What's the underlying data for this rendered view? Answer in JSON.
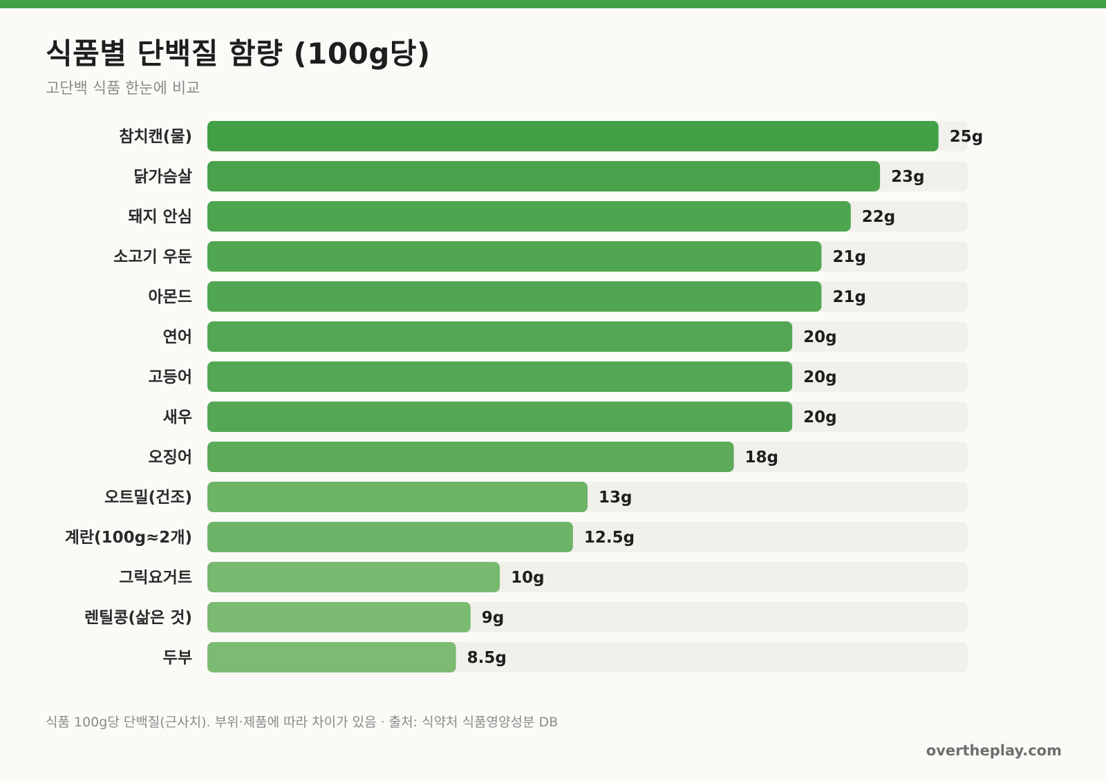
{
  "header": {
    "title": "식품별 단백질 함량 (100g당)",
    "subtitle": "고단백 식품 한눈에 비교"
  },
  "footer": {
    "note": "식품 100g당 단백질(근사치). 부위·제품에 따라 차이가 있음 · 출처: 식약처 식품영양성분 DB",
    "site": "overtheplay.com"
  },
  "colors": {
    "accent": "#43a047",
    "bar_strong": "#43a047",
    "bar_light": "#7cbb72",
    "track": "#f1f0eb",
    "background": "#fbfaf7"
  },
  "chart_data": {
    "type": "bar",
    "orientation": "horizontal",
    "title": "식품별 단백질 함량 (100g당)",
    "subtitle": "고단백 식품 한눈에 비교",
    "unit": "g",
    "xlim": [
      0,
      26
    ],
    "grid": false,
    "legend": "none",
    "categories": [
      "참치캔(물)",
      "닭가슴살",
      "돼지 안심",
      "소고기 우둔",
      "아몬드",
      "연어",
      "고등어",
      "새우",
      "오징어",
      "오트밀(건조)",
      "계란(100g≈2개)",
      "그릭요거트",
      "렌틸콩(삶은 것)",
      "두부"
    ],
    "values": [
      25,
      23,
      22,
      21,
      21,
      20,
      20,
      20,
      18,
      13,
      12.5,
      10,
      9,
      8.5
    ],
    "value_labels": [
      "25g",
      "23g",
      "22g",
      "21g",
      "21g",
      "20g",
      "20g",
      "20g",
      "18g",
      "13g",
      "12.5g",
      "10g",
      "9g",
      "8.5g"
    ]
  }
}
